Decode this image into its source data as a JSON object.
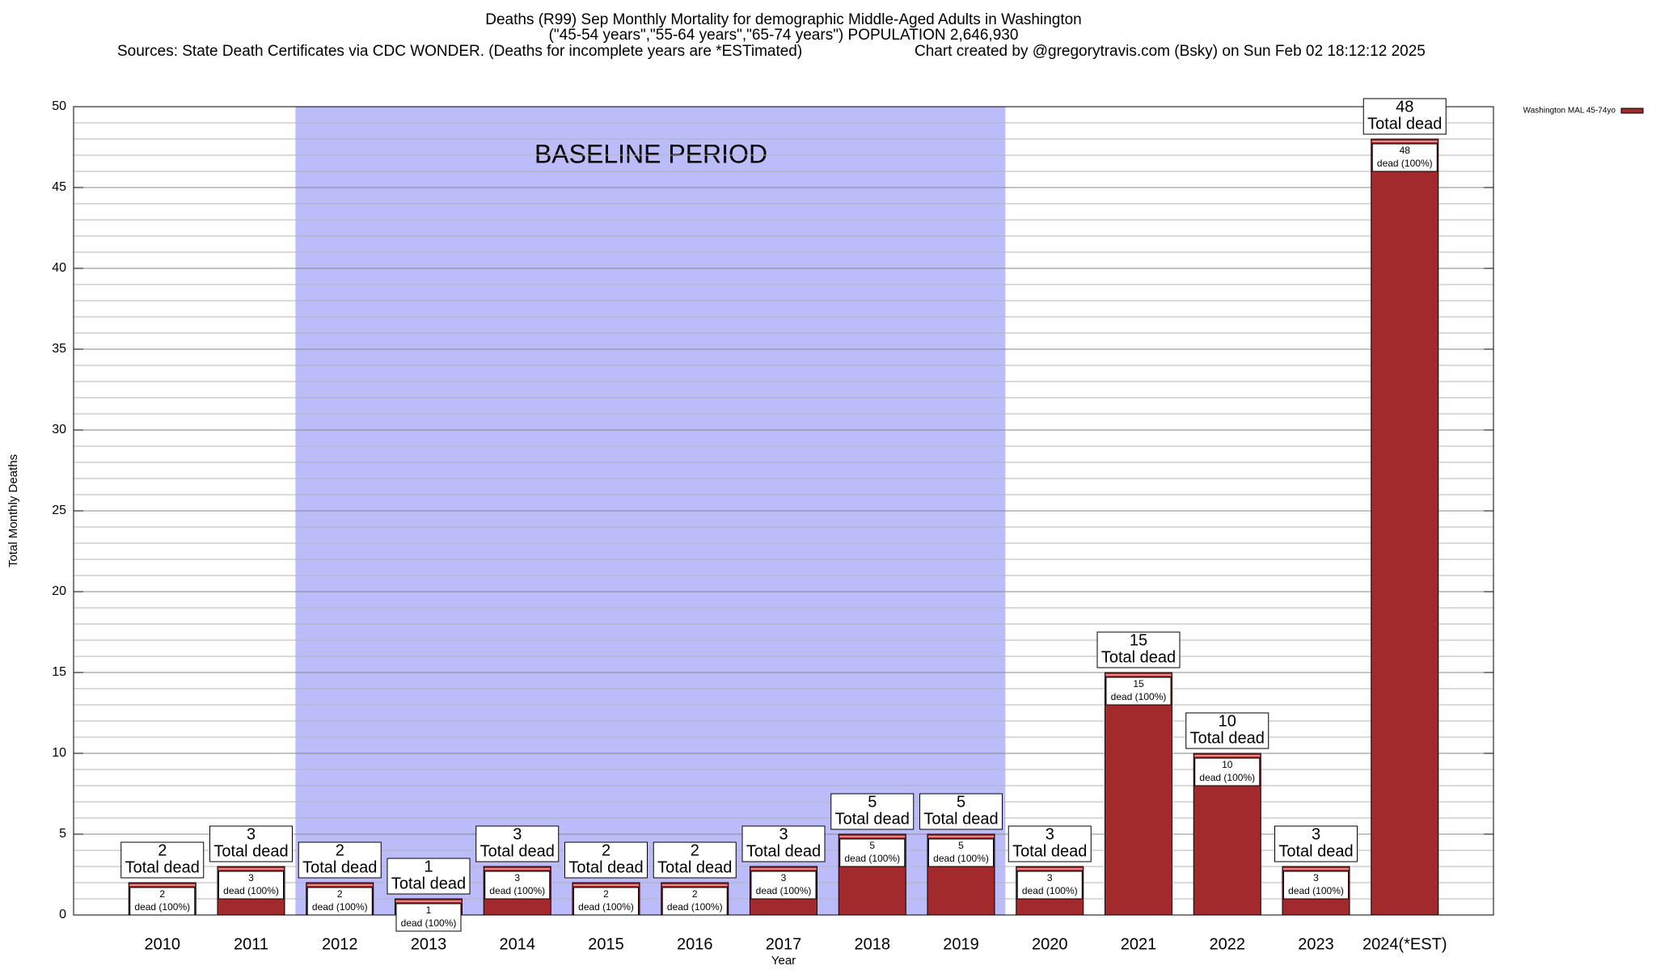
{
  "chart_data": {
    "type": "bar",
    "title_lines": [
      "Deaths (R99) Sep Monthly Mortality for demographic Middle-Aged Adults in Washington",
      "(\"45-54 years\",\"55-64 years\",\"65-74 years\") POPULATION 2,646,930"
    ],
    "sources": "Sources: State Death Certificates via CDC WONDER. (Deaths for incomplete years are *ESTimated)",
    "credit": "Chart created by @gregorytravis.com (Bsky) on Sun Feb 02 18:12:12 2025",
    "ylabel": "Total Monthly Deaths",
    "xlabel": "Year",
    "categories": [
      "2010",
      "2011",
      "2012",
      "2013",
      "2014",
      "2015",
      "2016",
      "2017",
      "2018",
      "2019",
      "2020",
      "2021",
      "2022",
      "2023",
      "2024(*EST)"
    ],
    "series": [
      {
        "name": "Washington MAL 45-74yo",
        "color": "#a2292c",
        "values": [
          2,
          3,
          2,
          1,
          3,
          2,
          2,
          3,
          5,
          5,
          3,
          15,
          10,
          3,
          48
        ]
      }
    ],
    "total_label": "Total dead",
    "inner_label": "dead (100%)",
    "shade": {
      "label": "BASELINE PERIOD",
      "from": "2012",
      "to": "2019",
      "color": "#bcbcfa"
    },
    "ylim": [
      0,
      50
    ],
    "yticks": [
      0,
      5,
      10,
      15,
      20,
      25,
      30,
      35,
      40,
      45,
      50
    ],
    "minor_grid_step": 1,
    "grid": true,
    "legend": "top-right"
  }
}
